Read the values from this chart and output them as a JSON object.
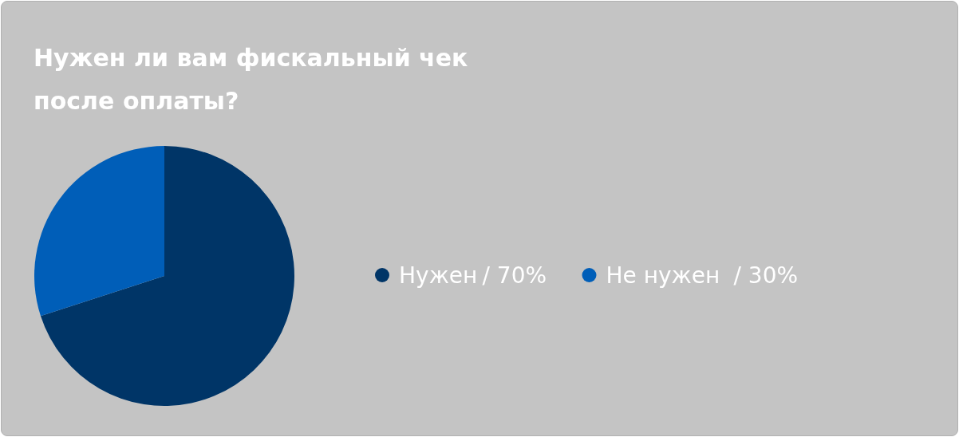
{
  "chart_data": {
    "type": "pie",
    "title": "Нужен ли вам фискальный чек после оплаты?",
    "categories": [
      "Нужен",
      "Не нужен"
    ],
    "values": [
      70,
      30
    ],
    "value_labels": [
      "/ 70%",
      "/ 30%"
    ],
    "colors": [
      "#003567",
      "#005eb8"
    ],
    "legend": "right"
  }
}
